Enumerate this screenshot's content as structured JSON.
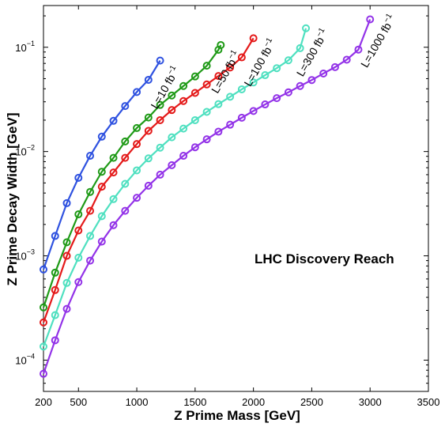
{
  "chart_data": {
    "type": "line",
    "title": "",
    "xlabel": "Z Prime Mass  [GeV]",
    "ylabel": "Z Prime Decay Width  [GeV]",
    "annotation": "LHC Discovery Reach",
    "xlim": [
      200,
      3500
    ],
    "ylim_log10": [
      -4.3,
      -0.6
    ],
    "y_scale": "log",
    "grid": false,
    "x_ticks": [
      200,
      500,
      1000,
      1500,
      2000,
      2500,
      3000,
      3500
    ],
    "x_tick_labels": [
      "200",
      "500",
      "1000",
      "1500",
      "2000",
      "2500",
      "3000",
      "3500"
    ],
    "y_ticks": [
      {
        "exp": -4,
        "label": "10",
        "sup": "−4"
      },
      {
        "exp": -3,
        "label": "10",
        "sup": "−3"
      },
      {
        "exp": -2,
        "label": "10",
        "sup": "−2"
      },
      {
        "exp": -1,
        "label": "10",
        "sup": "−1"
      }
    ],
    "series": [
      {
        "name": "L=10 fb",
        "sup": "−1",
        "color": "#2f52e0",
        "x": [
          200,
          300,
          400,
          500,
          600,
          700,
          800,
          900,
          1000,
          1100,
          1200
        ],
        "y": [
          0.00074,
          0.00155,
          0.0032,
          0.0056,
          0.0091,
          0.0139,
          0.0197,
          0.0273,
          0.0372,
          0.0487,
          0.0745
        ]
      },
      {
        "name": "L=50 fb",
        "sup": "−1",
        "color": "#1f9a17",
        "x": [
          200,
          300,
          400,
          500,
          600,
          700,
          800,
          900,
          1000,
          1100,
          1200,
          1300,
          1400,
          1500,
          1600,
          1700,
          1720
        ],
        "y": [
          0.00032,
          0.00069,
          0.00135,
          0.0025,
          0.0041,
          0.0064,
          0.0087,
          0.0125,
          0.0168,
          0.0212,
          0.028,
          0.0345,
          0.0425,
          0.0525,
          0.0665,
          0.0945,
          0.105
        ]
      },
      {
        "name": "L=100 fb",
        "sup": "−1",
        "color": "#e41a1a",
        "x": [
          200,
          300,
          400,
          500,
          600,
          700,
          800,
          900,
          1000,
          1100,
          1200,
          1300,
          1400,
          1500,
          1600,
          1700,
          1800,
          1900,
          2000
        ],
        "y": [
          0.00023,
          0.00047,
          0.001,
          0.00175,
          0.0027,
          0.0046,
          0.0063,
          0.0087,
          0.0118,
          0.0158,
          0.02,
          0.025,
          0.0305,
          0.0365,
          0.044,
          0.053,
          0.064,
          0.08,
          0.122
        ]
      },
      {
        "name": "L=300 fb",
        "sup": "−1",
        "color": "#4fe0c0",
        "x": [
          200,
          300,
          400,
          500,
          600,
          700,
          800,
          900,
          1000,
          1100,
          1200,
          1300,
          1400,
          1500,
          1600,
          1700,
          1800,
          1900,
          2000,
          2100,
          2200,
          2300,
          2400,
          2450
        ],
        "y": [
          0.000135,
          0.00027,
          0.00055,
          0.00096,
          0.00155,
          0.0024,
          0.0035,
          0.0049,
          0.0066,
          0.0086,
          0.0109,
          0.0137,
          0.0166,
          0.02,
          0.024,
          0.0285,
          0.0335,
          0.0395,
          0.046,
          0.054,
          0.063,
          0.075,
          0.098,
          0.152
        ]
      },
      {
        "name": "L=1000 fb",
        "sup": "−1",
        "color": "#9333e8",
        "x": [
          200,
          300,
          400,
          500,
          600,
          700,
          800,
          900,
          1000,
          1100,
          1200,
          1300,
          1400,
          1500,
          1600,
          1700,
          1800,
          1900,
          2000,
          2100,
          2200,
          2300,
          2400,
          2500,
          2600,
          2700,
          2800,
          2900,
          3000
        ],
        "y": [
          7.4e-05,
          0.000155,
          0.00031,
          0.00056,
          0.0009,
          0.00137,
          0.00197,
          0.0027,
          0.0036,
          0.0047,
          0.006,
          0.0074,
          0.0091,
          0.011,
          0.0131,
          0.0155,
          0.0181,
          0.0211,
          0.0245,
          0.0283,
          0.0325,
          0.037,
          0.0425,
          0.0485,
          0.056,
          0.0645,
          0.076,
          0.095,
          0.185
        ]
      }
    ]
  }
}
